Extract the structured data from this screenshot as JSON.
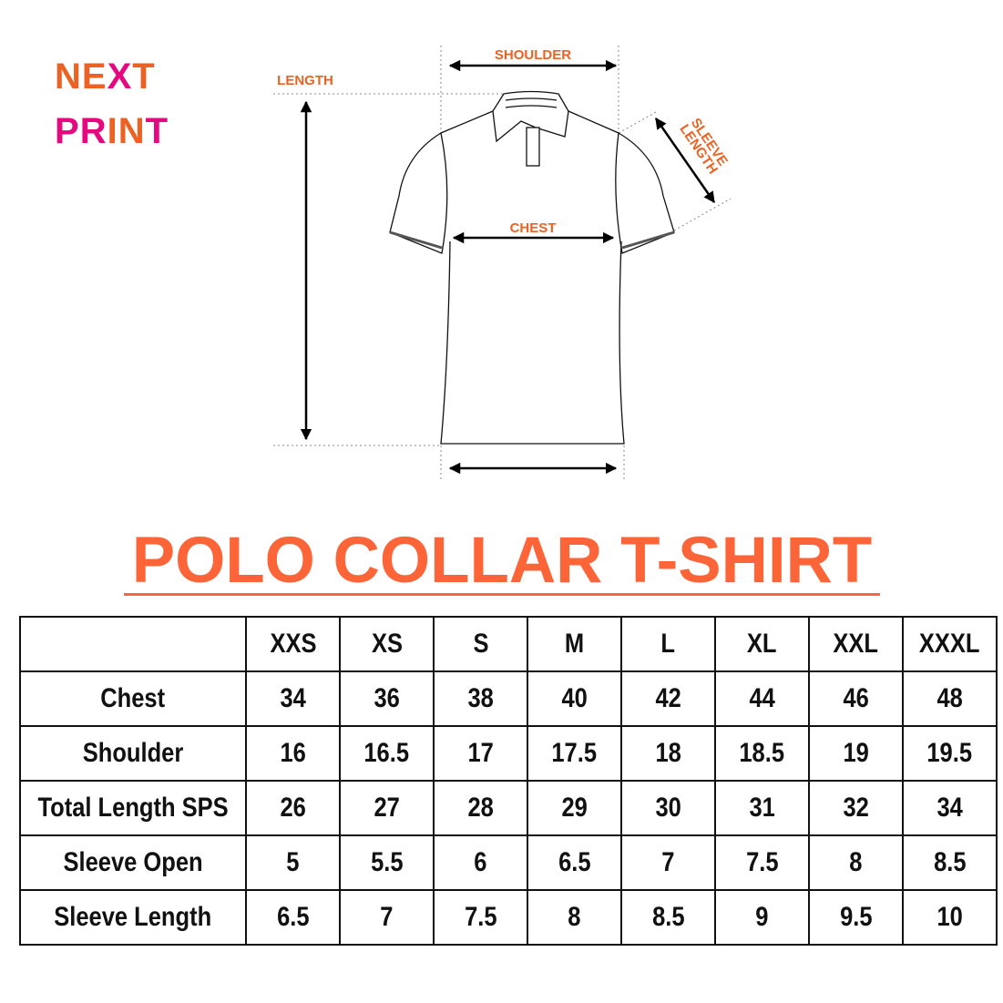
{
  "logo": {
    "line1": [
      "N",
      "E",
      "X",
      "T"
    ],
    "line2": [
      "P",
      "R",
      "I",
      "N",
      "T"
    ],
    "colors": {
      "orange": "#ec6224",
      "magenta": "#e5087f"
    }
  },
  "diagram": {
    "labels": {
      "shoulder": "SHOULDER",
      "length": "LENGTH",
      "sleeve_length_1": "SLEEVE",
      "sleeve_length_2": "LENGTH",
      "chest": "CHEST"
    }
  },
  "title": "POLO COLLAR T-SHIRT",
  "table": {
    "sizes": [
      "XXS",
      "XS",
      "S",
      "M",
      "L",
      "XL",
      "XXL",
      "XXXL"
    ],
    "rows": [
      {
        "label": "Chest",
        "values": [
          "34",
          "36",
          "38",
          "40",
          "42",
          "44",
          "46",
          "48"
        ]
      },
      {
        "label": "Shoulder",
        "values": [
          "16",
          "16.5",
          "17",
          "17.5",
          "18",
          "18.5",
          "19",
          "19.5"
        ]
      },
      {
        "label": "Total Length SPS",
        "values": [
          "26",
          "27",
          "28",
          "29",
          "30",
          "31",
          "32",
          "34"
        ]
      },
      {
        "label": "Sleeve Open",
        "values": [
          "5",
          "5.5",
          "6",
          "6.5",
          "7",
          "7.5",
          "8",
          "8.5"
        ]
      },
      {
        "label": "Sleeve Length",
        "values": [
          "6.5",
          "7",
          "7.5",
          "8",
          "8.5",
          "9",
          "9.5",
          "10"
        ]
      }
    ]
  },
  "colors": {
    "title": "#fd6538",
    "label": "#ec6224"
  }
}
